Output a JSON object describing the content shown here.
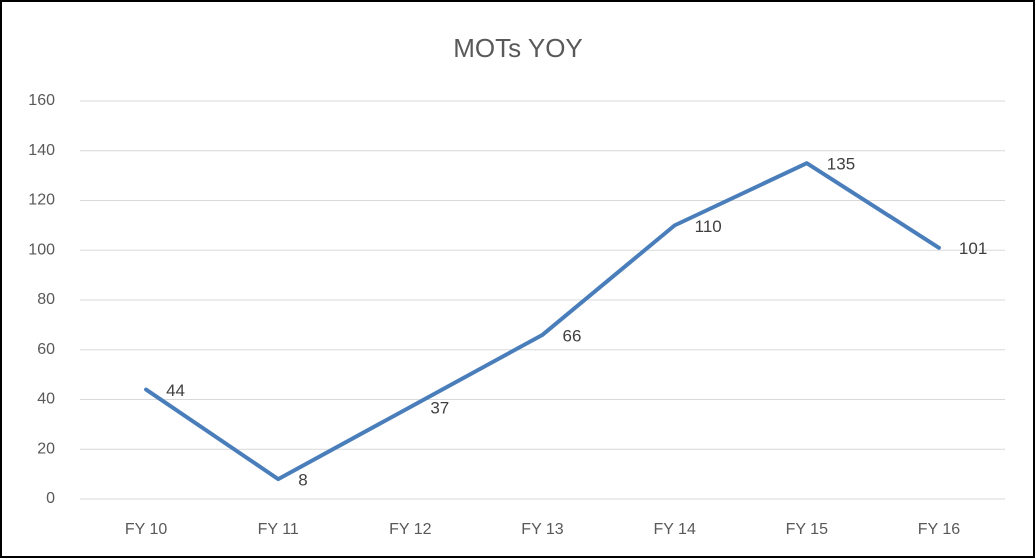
{
  "chart_data": {
    "type": "line",
    "title": "MOTs YOY",
    "categories": [
      "FY 10",
      "FY 11",
      "FY 12",
      "FY 13",
      "FY 14",
      "FY 15",
      "FY 16"
    ],
    "values": [
      44,
      8,
      37,
      66,
      110,
      135,
      101
    ],
    "color": "#4a7ebb",
    "ylim": [
      0,
      160
    ],
    "yticks": [
      0,
      20,
      40,
      60,
      80,
      100,
      120,
      140,
      160
    ],
    "grid": true
  }
}
